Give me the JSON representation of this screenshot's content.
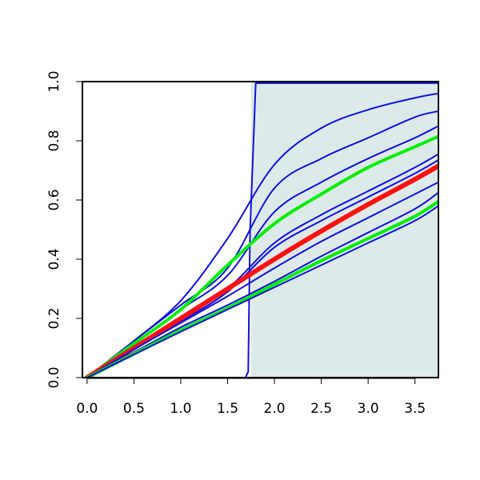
{
  "chart_data": {
    "type": "line",
    "title": "",
    "xlabel": "",
    "ylabel": "",
    "xlim": [
      -0.05,
      3.75
    ],
    "ylim": [
      0.0,
      1.0
    ],
    "x_ticks": [
      "0.0",
      "0.5",
      "1.0",
      "1.5",
      "2.0",
      "2.5",
      "3.0",
      "3.5"
    ],
    "y_ticks": [
      "0.0",
      "0.2",
      "0.4",
      "0.6",
      "0.8",
      "1.0"
    ],
    "grid": false,
    "legend": "none",
    "shaded_region": {
      "x_start": 1.75,
      "x_end": 3.75,
      "color": "#deeaea"
    },
    "series": [
      {
        "color": "#1010e0",
        "width": 2,
        "x": [
          0,
          1.0,
          1.69,
          1.72,
          1.74,
          1.8,
          3.75
        ],
        "y": [
          0,
          0,
          0,
          0.02,
          0.5,
          0.995,
          0.995
        ]
      },
      {
        "color": "#1010e0",
        "width": 2,
        "x": [
          0,
          0.5,
          1.0,
          1.5,
          2.0,
          2.5,
          3.0,
          3.5,
          3.75
        ],
        "y": [
          0,
          0.124,
          0.26,
          0.47,
          0.72,
          0.843,
          0.905,
          0.945,
          0.96
        ]
      },
      {
        "color": "#1010e0",
        "width": 2,
        "x": [
          0,
          0.5,
          1.0,
          1.5,
          2.0,
          2.5,
          3.0,
          3.5,
          3.75
        ],
        "y": [
          0,
          0.124,
          0.245,
          0.37,
          0.64,
          0.74,
          0.81,
          0.88,
          0.9
        ]
      },
      {
        "color": "#1010e0",
        "width": 2,
        "x": [
          0,
          0.5,
          1.0,
          1.5,
          2.0,
          2.5,
          3.0,
          3.5,
          3.75
        ],
        "y": [
          0,
          0.115,
          0.23,
          0.345,
          0.56,
          0.66,
          0.74,
          0.81,
          0.85
        ]
      },
      {
        "color": "#00ee00",
        "width": 4,
        "x": [
          0,
          0.5,
          1.0,
          1.5,
          2.0,
          2.5,
          3.0,
          3.5,
          3.75
        ],
        "y": [
          0,
          0.115,
          0.23,
          0.38,
          0.52,
          0.62,
          0.71,
          0.78,
          0.815
        ]
      },
      {
        "color": "#1010e0",
        "width": 2,
        "x": [
          0,
          0.5,
          1.0,
          1.5,
          2.0,
          2.5,
          3.0,
          3.5,
          3.75
        ],
        "y": [
          0,
          0.1,
          0.2,
          0.3,
          0.455,
          0.55,
          0.63,
          0.71,
          0.755
        ]
      },
      {
        "color": "#1010e0",
        "width": 2,
        "x": [
          0,
          0.5,
          1.0,
          1.5,
          2.0,
          2.5,
          3.0,
          3.5,
          3.75
        ],
        "y": [
          0,
          0.1,
          0.19,
          0.29,
          0.44,
          0.53,
          0.61,
          0.69,
          0.735
        ]
      },
      {
        "color": "#ff1010",
        "width": 6,
        "x": [
          0,
          0.5,
          1.0,
          1.5,
          2.0,
          2.5,
          3.0,
          3.5,
          3.75
        ],
        "y": [
          0,
          0.1,
          0.2,
          0.3,
          0.4,
          0.495,
          0.585,
          0.67,
          0.715
        ]
      },
      {
        "color": "#1010e0",
        "width": 2,
        "x": [
          0,
          0.5,
          1.0,
          1.5,
          2.0,
          2.5,
          3.0,
          3.5,
          3.75
        ],
        "y": [
          0,
          0.095,
          0.185,
          0.275,
          0.37,
          0.46,
          0.54,
          0.62,
          0.66
        ]
      },
      {
        "color": "#1010e0",
        "width": 2,
        "x": [
          0,
          0.5,
          1.0,
          1.5,
          2.0,
          2.5,
          3.0,
          3.5,
          3.75
        ],
        "y": [
          0,
          0.085,
          0.17,
          0.245,
          0.325,
          0.41,
          0.49,
          0.57,
          0.625
        ]
      },
      {
        "color": "#00ee00",
        "width": 4,
        "x": [
          0,
          0.5,
          1.0,
          1.5,
          2.0,
          2.5,
          3.0,
          3.5,
          3.75
        ],
        "y": [
          0,
          0.08,
          0.16,
          0.235,
          0.315,
          0.395,
          0.47,
          0.545,
          0.595
        ]
      },
      {
        "color": "#1010e0",
        "width": 2,
        "x": [
          0,
          0.5,
          1.0,
          1.5,
          2.0,
          2.5,
          3.0,
          3.5,
          3.75
        ],
        "y": [
          0,
          0.078,
          0.155,
          0.23,
          0.305,
          0.38,
          0.455,
          0.53,
          0.58
        ]
      }
    ]
  }
}
